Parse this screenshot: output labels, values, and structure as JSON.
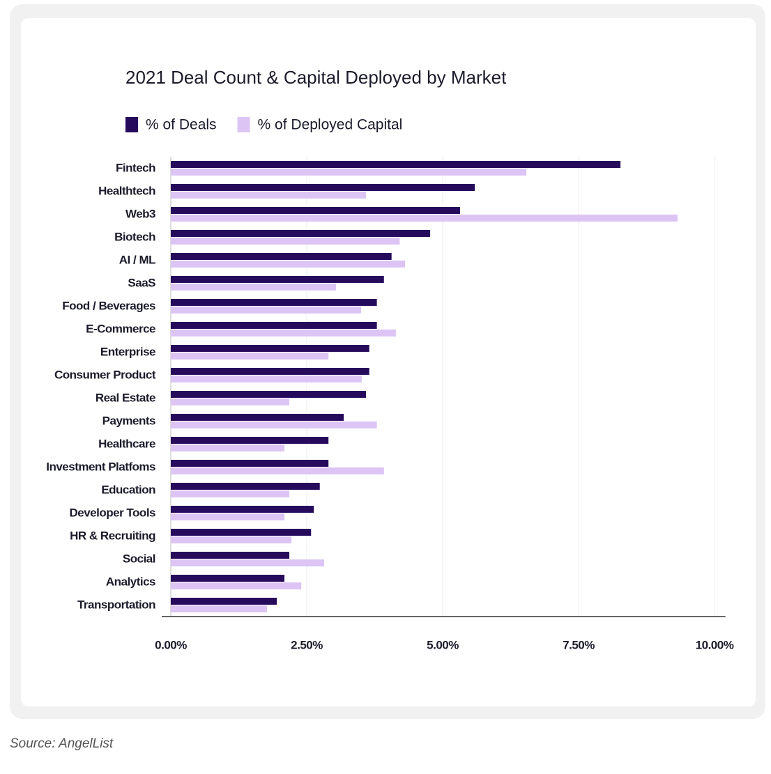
{
  "chart_data": {
    "type": "bar",
    "orientation": "horizontal",
    "title": "2021 Deal Count & Capital Deployed by Market",
    "categories": [
      "Fintech",
      "Healthtech",
      "Web3",
      "Biotech",
      "AI / ML",
      "SaaS",
      "Food / Beverages",
      "E-Commerce",
      "Enterprise",
      "Consumer Product",
      "Real Estate",
      "Payments",
      "Healthcare",
      "Investment Platfoms",
      "Education",
      "Developer Tools",
      "HR & Recruiting",
      "Social",
      "Analytics",
      "Transportation"
    ],
    "series": [
      {
        "name": "% of Deals",
        "color": "#260a5c",
        "values": [
          8.27,
          5.59,
          5.32,
          4.77,
          4.06,
          3.92,
          3.79,
          3.79,
          3.65,
          3.65,
          3.59,
          3.18,
          2.9,
          2.9,
          2.74,
          2.63,
          2.58,
          2.18,
          2.09,
          1.95
        ]
      },
      {
        "name": "% of Deployed Capital",
        "color": "#dcc4f4",
        "values": [
          6.54,
          3.59,
          9.32,
          4.21,
          4.31,
          3.04,
          3.5,
          4.14,
          2.9,
          3.51,
          2.18,
          3.79,
          2.09,
          3.92,
          2.18,
          2.09,
          2.22,
          2.82,
          2.4,
          1.77
        ]
      }
    ],
    "xlim": [
      0,
      10.2
    ],
    "xticks": [
      {
        "value": 0,
        "label": "0.00%"
      },
      {
        "value": 2.5,
        "label": "2.50%"
      },
      {
        "value": 5,
        "label": "5.00%"
      },
      {
        "value": 7.5,
        "label": "7.50%"
      },
      {
        "value": 10,
        "label": "10.00%"
      }
    ],
    "grid": true
  },
  "source": "Source: AngelList"
}
